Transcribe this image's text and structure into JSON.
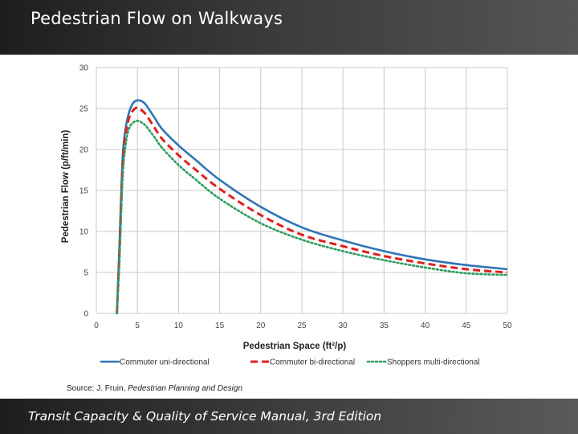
{
  "slide": {
    "title": "Pedestrian Flow on Walkways",
    "footer": "Transit Capacity & Quality of Service Manual, 3rd Edition",
    "source_prefix": "Source: J. Fruin, ",
    "source_title": "Pedestrian Planning and Design"
  },
  "chart_data": {
    "type": "line",
    "title": "",
    "xlabel": "Pedestrian Space (ft²/p)",
    "ylabel": "Pedestrian Flow (p/ft/min)",
    "xlim": [
      0,
      50
    ],
    "ylim": [
      0,
      30
    ],
    "xticks": [
      0,
      5,
      10,
      15,
      20,
      25,
      30,
      35,
      40,
      45,
      50
    ],
    "yticks": [
      0,
      5,
      10,
      15,
      20,
      25,
      30
    ],
    "grid": true,
    "legend_position": "bottom",
    "series": [
      {
        "name": "Commuter uni-directional",
        "color": "#2e75b6",
        "style": "solid",
        "x": [
          2.5,
          2.8,
          3.2,
          3.6,
          4.0,
          4.5,
          5.0,
          5.5,
          6.0,
          7.0,
          8.0,
          10.0,
          12.0,
          15.0,
          20.0,
          25.0,
          30.0,
          35.0,
          40.0,
          45.0,
          50.0
        ],
        "y": [
          0,
          8,
          19,
          22.8,
          24.6,
          25.7,
          26.0,
          25.9,
          25.5,
          24.0,
          22.5,
          20.5,
          18.8,
          16.3,
          13.0,
          10.5,
          8.9,
          7.6,
          6.6,
          5.9,
          5.4
        ]
      },
      {
        "name": "Commuter bi-directional",
        "color": "#e02020",
        "style": "dashed",
        "x": [
          2.5,
          2.8,
          3.2,
          3.6,
          4.0,
          4.5,
          5.0,
          5.5,
          6.0,
          7.0,
          8.0,
          10.0,
          12.0,
          15.0,
          20.0,
          25.0,
          30.0,
          35.0,
          40.0,
          45.0,
          50.0
        ],
        "y": [
          0,
          7,
          18,
          22.0,
          23.9,
          24.8,
          25.1,
          24.8,
          24.3,
          22.8,
          21.3,
          19.3,
          17.6,
          15.2,
          12.0,
          9.6,
          8.2,
          7.0,
          6.1,
          5.4,
          5.0
        ]
      },
      {
        "name": "Shoppers multi-directional",
        "color": "#2e9e5e",
        "style": "dotted",
        "x": [
          2.5,
          2.8,
          3.2,
          3.6,
          4.0,
          4.5,
          5.0,
          5.5,
          6.0,
          7.0,
          8.0,
          10.0,
          12.0,
          15.0,
          20.0,
          25.0,
          30.0,
          35.0,
          40.0,
          45.0,
          50.0
        ],
        "y": [
          0,
          6,
          16.5,
          20.8,
          22.6,
          23.3,
          23.5,
          23.3,
          22.9,
          21.6,
          20.2,
          18.1,
          16.4,
          14.0,
          11.0,
          9.0,
          7.6,
          6.5,
          5.6,
          4.9,
          4.7
        ]
      }
    ]
  }
}
